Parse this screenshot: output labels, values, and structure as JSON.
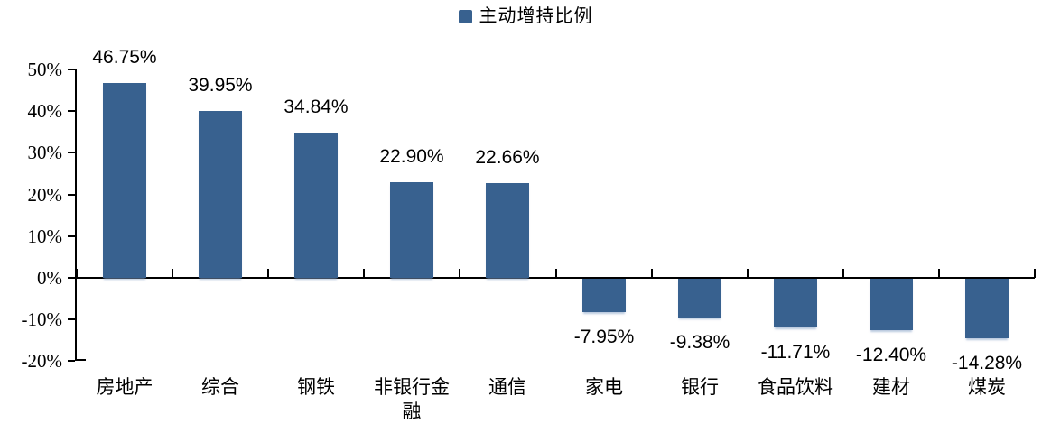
{
  "chart_data": {
    "type": "bar",
    "title": "",
    "legend": [
      "主动增持比例"
    ],
    "legend_position": "top-center",
    "categories": [
      "房地产",
      "综合",
      "钢铁",
      "非银行金融",
      "通信",
      "家电",
      "银行",
      "食品饮料",
      "建材",
      "煤炭"
    ],
    "values": [
      46.75,
      39.95,
      34.84,
      22.9,
      22.66,
      -7.95,
      -9.38,
      -11.71,
      -12.4,
      -14.28
    ],
    "data_labels": [
      "46.75%",
      "39.95%",
      "34.84%",
      "22.90%",
      "22.66%",
      "-7.95%",
      "-9.38%",
      "-11.71%",
      "-12.40%",
      "-14.28%"
    ],
    "xlabel": "",
    "ylabel": "",
    "ylim": [
      -20,
      50
    ],
    "y_axis": {
      "ticks": [
        {
          "value": 50,
          "label": "50%"
        },
        {
          "value": 40,
          "label": "40%"
        },
        {
          "value": 30,
          "label": "30%"
        },
        {
          "value": 20,
          "label": "20%"
        },
        {
          "value": 10,
          "label": "10%"
        },
        {
          "value": 0,
          "label": "0%"
        },
        {
          "value": -10,
          "label": "-10%"
        },
        {
          "value": -20,
          "label": "-20%"
        }
      ]
    },
    "grid": false,
    "bar_color": "#38618f",
    "axis_color": "#000000",
    "background": "#ffffff"
  }
}
